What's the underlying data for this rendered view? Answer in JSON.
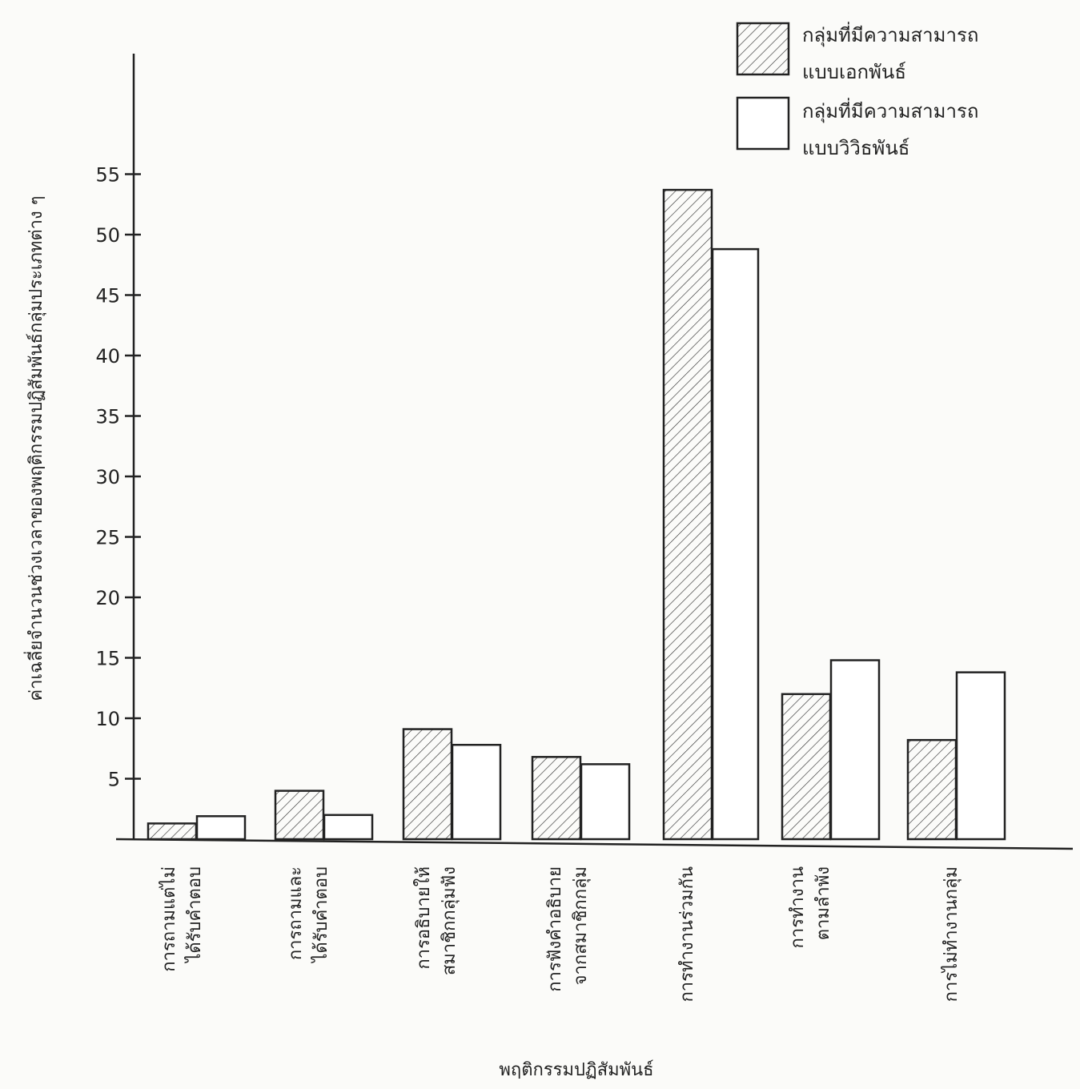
{
  "chart_data": {
    "type": "bar",
    "ylabel": "ค่าเฉลี่ยจำนวนช่วงเวลาของพฤติกรรมปฏิสัมพันธ์กลุ่มประเภทต่าง ๆ",
    "xlabel": "พฤติกรรมปฏิสัมพันธ์",
    "ylim": [
      0,
      55
    ],
    "yticks": [
      5,
      10,
      15,
      20,
      25,
      30,
      35,
      40,
      45,
      50,
      55
    ],
    "categories": [
      [
        "การถามแต่ไม่",
        "ได้รับคำตอบ"
      ],
      [
        "การถามและ",
        "ได้รับคำตอบ"
      ],
      [
        "การอธิบายให้",
        "สมาชิกกลุ่มฟัง"
      ],
      [
        "การฟังคำอธิบาย",
        "จากสมาชิกกลุ่ม"
      ],
      [
        "การทำงานร่วมกัน"
      ],
      [
        "การทำงาน",
        "ตามลำพัง"
      ],
      [
        "การไม่ทำงานกลุ่ม"
      ]
    ],
    "series": [
      {
        "name": "กลุ่มที่มีความสามารถแบบเอกพันธ์",
        "legend_lines": [
          "กลุ่มที่มีความสามารถ",
          "แบบเอกพันธ์"
        ],
        "pattern": "hatched",
        "values": [
          1.3,
          4.0,
          9.1,
          6.8,
          53.7,
          12.0,
          8.2
        ]
      },
      {
        "name": "กลุ่มที่มีความสามารถแบบวิวิธพันธ์",
        "legend_lines": [
          "กลุ่มที่มีความสามารถ",
          "แบบวิวิธพันธ์"
        ],
        "pattern": "plain",
        "values": [
          1.9,
          2.0,
          7.8,
          6.2,
          48.8,
          14.8,
          13.8
        ]
      }
    ],
    "grid": false,
    "legend_position": "top-right",
    "colors": {
      "ink": "#222222",
      "paper": "#fbfbf9"
    }
  }
}
